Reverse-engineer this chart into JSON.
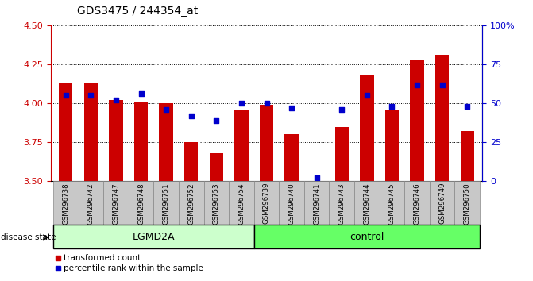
{
  "title": "GDS3475 / 244354_at",
  "samples": [
    "GSM296738",
    "GSM296742",
    "GSM296747",
    "GSM296748",
    "GSM296751",
    "GSM296752",
    "GSM296753",
    "GSM296754",
    "GSM296739",
    "GSM296740",
    "GSM296741",
    "GSM296743",
    "GSM296744",
    "GSM296745",
    "GSM296746",
    "GSM296749",
    "GSM296750"
  ],
  "transformed_count": [
    4.13,
    4.13,
    4.02,
    4.01,
    4.0,
    3.75,
    3.68,
    3.96,
    3.99,
    3.8,
    3.5,
    3.85,
    4.18,
    3.96,
    4.28,
    4.31,
    3.82
  ],
  "percentile_rank": [
    55,
    55,
    52,
    56,
    46,
    42,
    39,
    50,
    50,
    47,
    2,
    46,
    55,
    48,
    62,
    62,
    48
  ],
  "groups": [
    "LGMD2A",
    "LGMD2A",
    "LGMD2A",
    "LGMD2A",
    "LGMD2A",
    "LGMD2A",
    "LGMD2A",
    "LGMD2A",
    "control",
    "control",
    "control",
    "control",
    "control",
    "control",
    "control",
    "control",
    "control"
  ],
  "lgmd2a_count": 8,
  "control_count": 9,
  "ylim_left": [
    3.5,
    4.5
  ],
  "ylim_right": [
    0,
    100
  ],
  "yticks_left": [
    3.5,
    3.75,
    4.0,
    4.25,
    4.5
  ],
  "yticks_right": [
    0,
    25,
    50,
    75,
    100
  ],
  "ytick_labels_right": [
    "0",
    "25",
    "50",
    "75",
    "100%"
  ],
  "bar_color": "#cc0000",
  "dot_color": "#0000cc",
  "lgmd2a_color": "#ccffcc",
  "control_color": "#66ff66",
  "tick_area_color": "#c8c8c8",
  "left_axis_color": "#cc0000",
  "right_axis_color": "#0000cc",
  "bar_width": 0.55
}
